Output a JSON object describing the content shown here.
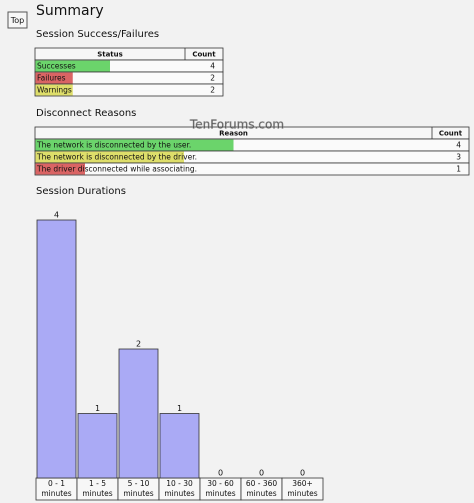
{
  "header": {
    "button": "Top",
    "title": "Summary",
    "watermark": "TenForums.com"
  },
  "session_table": {
    "title": "Session Success/Failures",
    "columns": [
      "Status",
      "Count"
    ],
    "rows": [
      {
        "label": "Successes",
        "count": 4,
        "color": "#6bd46b"
      },
      {
        "label": "Failures",
        "count": 2,
        "color": "#da6464"
      },
      {
        "label": "Warnings",
        "count": 2,
        "color": "#dede6a"
      }
    ]
  },
  "disconnect_table": {
    "title": "Disconnect Reasons",
    "columns": [
      "Reason",
      "Count"
    ],
    "rows": [
      {
        "label": "The network is disconnected by the user.",
        "count": 4,
        "color": "#6bd46b"
      },
      {
        "label": "The network is disconnected by the driver.",
        "count": 3,
        "color": "#dede6a"
      },
      {
        "label": "The driver disconnected while associating.",
        "count": 1,
        "color": "#da6464"
      }
    ]
  },
  "chart_data": {
    "type": "bar",
    "title": "Session Durations",
    "categories": [
      [
        "0 - 1",
        "minutes"
      ],
      [
        "1 - 5",
        "minutes"
      ],
      [
        "5 - 10",
        "minutes"
      ],
      [
        "10 - 30",
        "minutes"
      ],
      [
        "30 - 60",
        "minutes"
      ],
      [
        "60 - 360",
        "minutes"
      ],
      [
        "360+",
        "minutes"
      ]
    ],
    "values": [
      4,
      1,
      2,
      1,
      0,
      0,
      0
    ],
    "color": "#aaaaf5"
  }
}
